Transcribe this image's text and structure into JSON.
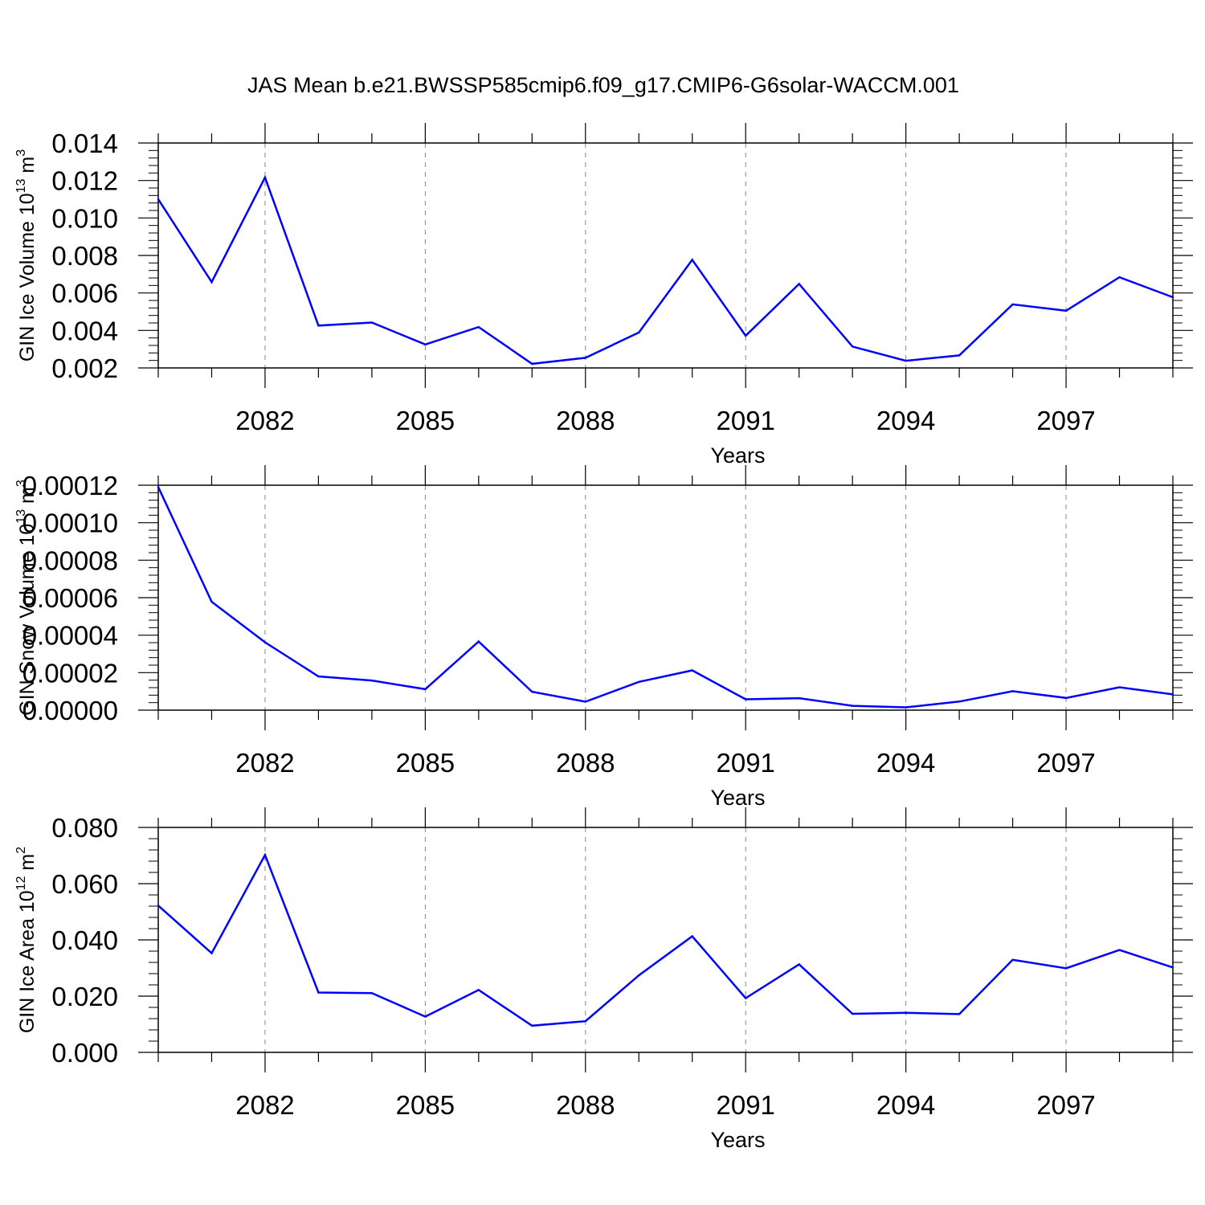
{
  "figure_title": "JAS Mean b.e21.BWSSP585cmip6.f09_g17.CMIP6-G6solar-WACCM.001",
  "colors": {
    "line": "#0000ff",
    "axis": "#000000",
    "grid": "#888888"
  },
  "chart_data": [
    {
      "type": "line",
      "title": "",
      "xlabel": "Years",
      "ylabel": "GIN Ice Volume 10",
      "ylabel_exp1": "13",
      "ylabel_unit": "m",
      "ylabel_exp2": "3",
      "x": [
        2080,
        2081,
        2082,
        2083,
        2084,
        2085,
        2086,
        2087,
        2088,
        2089,
        2090,
        2091,
        2092,
        2093,
        2094,
        2095,
        2096,
        2097,
        2098,
        2099
      ],
      "values": [
        0.011,
        0.00658,
        0.01216,
        0.00426,
        0.00442,
        0.00325,
        0.00418,
        0.00222,
        0.00254,
        0.00389,
        0.00777,
        0.00372,
        0.00648,
        0.00314,
        0.00238,
        0.00267,
        0.00539,
        0.00505,
        0.00684,
        0.00577
      ],
      "ylim": [
        0.002,
        0.014
      ],
      "xlim": [
        2080,
        2099
      ],
      "yticks": [
        "0.002",
        "0.004",
        "0.006",
        "0.008",
        "0.010",
        "0.012",
        "0.014"
      ],
      "xticks": [
        "2082",
        "2085",
        "2088",
        "2091",
        "2094",
        "2097"
      ],
      "grid": "x-major dashed"
    },
    {
      "type": "line",
      "title": "",
      "xlabel": "Years",
      "ylabel": "GIN Snow Volume 10",
      "ylabel_exp1": "13",
      "ylabel_unit": "m",
      "ylabel_exp2": "3",
      "x": [
        2080,
        2081,
        2082,
        2083,
        2084,
        2085,
        2086,
        2087,
        2088,
        2089,
        2090,
        2091,
        2092,
        2093,
        2094,
        2095,
        2096,
        2097,
        2098,
        2099
      ],
      "values": [
        0.000119,
        5.78e-05,
        3.62e-05,
        1.8e-05,
        1.58e-05,
        1.12e-05,
        3.66e-05,
        9.8e-06,
        4.5e-06,
        1.51e-05,
        2.12e-05,
        5.8e-06,
        6.4e-06,
        2.3e-06,
        1.5e-06,
        4.6e-06,
        1.01e-05,
        6.5e-06,
        1.22e-05,
        8.4e-06
      ],
      "ylim": [
        0,
        0.00012
      ],
      "xlim": [
        2080,
        2099
      ],
      "yticks": [
        "0.00000",
        "0.00002",
        "0.00004",
        "0.00006",
        "0.00008",
        "0.00010",
        "0.00012"
      ],
      "xticks": [
        "2082",
        "2085",
        "2088",
        "2091",
        "2094",
        "2097"
      ],
      "grid": "x-major dashed"
    },
    {
      "type": "line",
      "title": "",
      "xlabel": "Years",
      "ylabel": "GIN Ice Area 10",
      "ylabel_exp1": "12",
      "ylabel_unit": "m",
      "ylabel_exp2": "2",
      "x": [
        2080,
        2081,
        2082,
        2083,
        2084,
        2085,
        2086,
        2087,
        2088,
        2089,
        2090,
        2091,
        2092,
        2093,
        2094,
        2095,
        2096,
        2097,
        2098,
        2099
      ],
      "values": [
        0.0522,
        0.0353,
        0.0702,
        0.0213,
        0.0211,
        0.0127,
        0.0222,
        0.0095,
        0.0111,
        0.0274,
        0.0413,
        0.0193,
        0.0313,
        0.0137,
        0.0141,
        0.0136,
        0.0329,
        0.0299,
        0.0364,
        0.0302
      ],
      "ylim": [
        0.0,
        0.08
      ],
      "xlim": [
        2080,
        2099
      ],
      "yticks": [
        "0.000",
        "0.020",
        "0.040",
        "0.060",
        "0.080"
      ],
      "xticks": [
        "2082",
        "2085",
        "2088",
        "2091",
        "2094",
        "2097"
      ],
      "grid": "x-major dashed"
    }
  ]
}
